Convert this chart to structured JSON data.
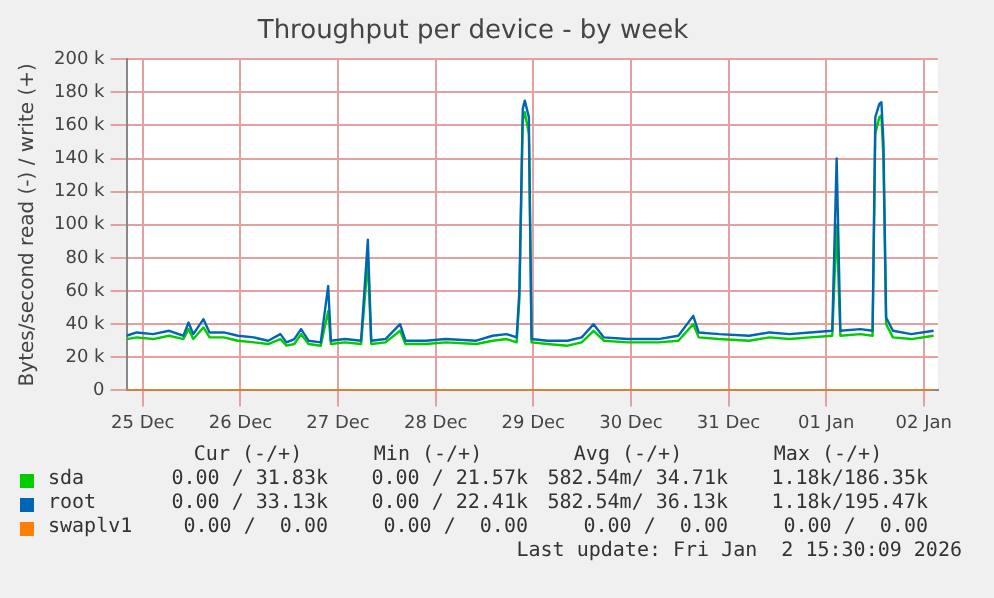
{
  "chart_data": {
    "type": "line",
    "title": "Throughput per device - by week",
    "ylabel": "Bytes/second read (-) / write (+)",
    "x": [
      "2025-12-25T08:00",
      "2025-12-25T10:30",
      "2025-12-25T14:30",
      "2025-12-25T18:30",
      "2025-12-25T22:00",
      "2025-12-25T23:15",
      "2025-12-26T00:25",
      "2025-12-26T02:55",
      "2025-12-26T04:25",
      "2025-12-26T07:55",
      "2025-12-26T11:25",
      "2025-12-26T15:20",
      "2025-12-26T18:50",
      "2025-12-26T21:50",
      "2025-12-26T23:20",
      "2025-12-27T01:15",
      "2025-12-27T02:55",
      "2025-12-27T04:45",
      "2025-12-27T07:45",
      "2025-12-27T09:35",
      "2025-12-27T10:15",
      "2025-12-27T13:40",
      "2025-12-27T17:40",
      "2025-12-27T19:20",
      "2025-12-27T20:10",
      "2025-12-27T23:40",
      "2025-12-28T03:15",
      "2025-12-28T04:35",
      "2025-12-28T09:35",
      "2025-12-28T14:30",
      "2025-12-28T22:00",
      "2025-12-29T02:00",
      "2025-12-29T05:25",
      "2025-12-29T07:55",
      "2025-12-29T08:35",
      "2025-12-29T09:25",
      "2025-12-29T09:55",
      "2025-12-29T10:55",
      "2025-12-29T11:35",
      "2025-12-29T15:25",
      "2025-12-29T20:25",
      "2025-12-29T23:55",
      "2025-12-30T02:50",
      "2025-12-30T05:20",
      "2025-12-30T11:15",
      "2025-12-30T18:45",
      "2025-12-30T23:40",
      "2025-12-31T03:20",
      "2025-12-31T04:40",
      "2025-12-31T09:40",
      "2025-12-31T17:05",
      "2025-12-31T22:05",
      "2026-01-01T03:00",
      "2026-01-01T08:00",
      "2026-01-01T13:30",
      "2026-01-01T14:35",
      "2026-01-01T15:30",
      "2026-01-01T20:25",
      "2026-01-01T23:25",
      "2026-01-02T00:05",
      "2026-01-02T01:05",
      "2026-01-02T01:35",
      "2026-01-02T02:05",
      "2026-01-02T02:45",
      "2026-01-02T04:25",
      "2026-01-02T08:55",
      "2026-01-02T14:25"
    ],
    "series": [
      {
        "name": "sda",
        "color": "#00cc00",
        "values": [
          31000,
          32000,
          31000,
          33000,
          31000,
          37000,
          31000,
          38000,
          32000,
          32000,
          30000,
          29000,
          28000,
          31000,
          27000,
          28000,
          34000,
          28000,
          27000,
          48000,
          28000,
          29000,
          28000,
          78000,
          28000,
          29000,
          36000,
          28000,
          28000,
          29000,
          28000,
          30000,
          31000,
          29000,
          55000,
          163000,
          168000,
          155000,
          29000,
          28000,
          27000,
          29000,
          36000,
          30000,
          29000,
          29000,
          30000,
          40000,
          32000,
          31000,
          30000,
          32000,
          31000,
          32000,
          33000,
          100000,
          33000,
          34000,
          33000,
          155000,
          165000,
          166000,
          140000,
          40000,
          32000,
          31000,
          33000
        ]
      },
      {
        "name": "root",
        "color": "#0066b3",
        "values": [
          33000,
          35000,
          34000,
          36000,
          33000,
          41000,
          34000,
          43000,
          35000,
          35000,
          33000,
          32000,
          30000,
          34000,
          29000,
          31000,
          37000,
          30000,
          29000,
          63000,
          30000,
          31000,
          30000,
          91000,
          30000,
          31000,
          40000,
          30000,
          30000,
          31000,
          30000,
          33000,
          34000,
          32000,
          60000,
          170000,
          175000,
          165000,
          31000,
          30000,
          30000,
          32000,
          40000,
          32000,
          31000,
          31000,
          33000,
          45000,
          35000,
          34000,
          33000,
          35000,
          34000,
          35000,
          36000,
          140000,
          36000,
          37000,
          36000,
          165000,
          173000,
          174000,
          150000,
          44000,
          36000,
          34000,
          36000
        ]
      },
      {
        "name": "swaplv1",
        "color": "#ff8000",
        "values": [
          0,
          0,
          0,
          0,
          0,
          0,
          0,
          0,
          0,
          0,
          0,
          0,
          0,
          0,
          0,
          0,
          0,
          0,
          0,
          0,
          0,
          0,
          0,
          0,
          0,
          0,
          0,
          0,
          0,
          0,
          0,
          0,
          0,
          0,
          0,
          0,
          0,
          0,
          0,
          0,
          0,
          0,
          0,
          0,
          0,
          0,
          0,
          0,
          0,
          0,
          0,
          0,
          0,
          0,
          0,
          0,
          0,
          0,
          0,
          0,
          0,
          0,
          0,
          0,
          0,
          0,
          0
        ]
      }
    ],
    "xlim": [
      "2025-12-25T08:00",
      "2026-01-02T15:30"
    ],
    "xticks": [
      {
        "value": "2025-12-25T12:00",
        "label": "25 Dec"
      },
      {
        "value": "2025-12-26T12:00",
        "label": "26 Dec"
      },
      {
        "value": "2025-12-27T12:00",
        "label": "27 Dec"
      },
      {
        "value": "2025-12-28T12:00",
        "label": "28 Dec"
      },
      {
        "value": "2025-12-29T12:00",
        "label": "29 Dec"
      },
      {
        "value": "2025-12-30T12:00",
        "label": "30 Dec"
      },
      {
        "value": "2025-12-31T12:00",
        "label": "31 Dec"
      },
      {
        "value": "2026-01-01T12:00",
        "label": "01 Jan"
      },
      {
        "value": "2026-01-02T12:00",
        "label": "02 Jan"
      }
    ],
    "ylim": [
      0,
      200000
    ],
    "yticks": [
      {
        "value": 0,
        "label": "0"
      },
      {
        "value": 20000,
        "label": "20 k"
      },
      {
        "value": 40000,
        "label": "40 k"
      },
      {
        "value": 60000,
        "label": "60 k"
      },
      {
        "value": 80000,
        "label": "80 k"
      },
      {
        "value": 100000,
        "label": "100 k"
      },
      {
        "value": 120000,
        "label": "120 k"
      },
      {
        "value": 140000,
        "label": "140 k"
      },
      {
        "value": 160000,
        "label": "160 k"
      },
      {
        "value": 180000,
        "label": "180 k"
      },
      {
        "value": 200000,
        "label": "200 k"
      }
    ],
    "grid": true,
    "legend": "bottom",
    "marker": "none",
    "line_style": "solid",
    "annotations": [
      "Cur (-/+)",
      "Min (-/+)",
      "Avg (-/+)",
      "Max (-/+)",
      "0.00 / 31.83k",
      "0.00 / 21.57k",
      "582.54m/ 34.71k",
      "1.18k/186.35k",
      "0.00 / 33.13k",
      "0.00 / 22.41k",
      "582.54m/ 36.13k",
      "1.18k/195.47k",
      "0.00 /  0.00",
      "0.00 /  0.00",
      "0.00 /  0.00",
      "0.00 /  0.00",
      "Last update: Fri Jan  2 15:30:09 2026"
    ]
  }
}
